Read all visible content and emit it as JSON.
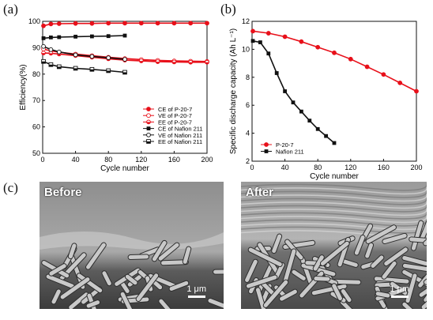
{
  "panels": {
    "a": "(a)",
    "b": "(b)",
    "c": "(c)"
  },
  "chart_data": [
    {
      "type": "line",
      "panel": "(a)",
      "xlabel": "Cycle number",
      "ylabel": "Efficiency(%)",
      "xlim": [
        0,
        200
      ],
      "ylim": [
        50,
        100
      ],
      "xticks": [
        "0",
        "40",
        "80",
        "120",
        "160",
        "200"
      ],
      "yticks": [
        "50",
        "60",
        "70",
        "80",
        "90",
        "100"
      ],
      "legend_position": "bottom-right",
      "series": [
        {
          "name": "CE of P-20-7",
          "color": "#e8101a",
          "marker": "filled-circle",
          "x": [
            1,
            10,
            20,
            40,
            60,
            80,
            100,
            120,
            140,
            160,
            180,
            200
          ],
          "y": [
            98.3,
            99.0,
            99.1,
            99.2,
            99.2,
            99.3,
            99.3,
            99.3,
            99.3,
            99.3,
            99.3,
            99.3
          ]
        },
        {
          "name": "VE of P-20-7",
          "color": "#e8101a",
          "marker": "open-circle",
          "x": [
            1,
            10,
            20,
            40,
            60,
            80,
            100,
            120,
            140,
            160,
            180,
            200
          ],
          "y": [
            89.5,
            88.8,
            88.3,
            87.6,
            87.0,
            86.4,
            85.9,
            85.5,
            85.2,
            85.0,
            84.9,
            84.8
          ]
        },
        {
          "name": "EE of P-20-7",
          "color": "#e8101a",
          "marker": "half-circle",
          "x": [
            1,
            10,
            20,
            40,
            60,
            80,
            100,
            120,
            140,
            160,
            180,
            200
          ],
          "y": [
            88.0,
            87.9,
            87.6,
            87.0,
            86.4,
            85.8,
            85.3,
            85.0,
            84.7,
            84.6,
            84.5,
            84.5
          ]
        },
        {
          "name": "CE of Nafion 211",
          "color": "#111111",
          "marker": "filled-square",
          "x": [
            1,
            10,
            20,
            40,
            60,
            80,
            100
          ],
          "y": [
            93.6,
            93.9,
            94.0,
            94.2,
            94.3,
            94.4,
            94.6
          ]
        },
        {
          "name": "VE of Nafion 211",
          "color": "#111111",
          "marker": "open-circle",
          "x": [
            1,
            10,
            20,
            40,
            60,
            80,
            100
          ],
          "y": [
            90.5,
            89.3,
            88.4,
            87.3,
            86.7,
            86.2,
            85.6
          ]
        },
        {
          "name": "EE of Nafion 211",
          "color": "#111111",
          "marker": "half-square",
          "x": [
            1,
            10,
            20,
            40,
            60,
            80,
            100
          ],
          "y": [
            84.8,
            83.6,
            82.8,
            82.2,
            81.8,
            81.3,
            80.7
          ]
        }
      ]
    },
    {
      "type": "line",
      "panel": "(b)",
      "xlabel": "Cycle number",
      "ylabel": "Specific discharge capacity (Ah L⁻¹)",
      "xlim": [
        0,
        200
      ],
      "ylim": [
        2,
        12
      ],
      "xticks": [
        "0",
        "40",
        "80",
        "120",
        "160",
        "200"
      ],
      "yticks": [
        "2",
        "4",
        "6",
        "8",
        "10",
        "12"
      ],
      "legend_position": "bottom-left",
      "series": [
        {
          "name": "P-20-7",
          "color": "#e8101a",
          "marker": "filled-circle",
          "x": [
            1,
            20,
            40,
            60,
            80,
            100,
            120,
            140,
            160,
            180,
            200
          ],
          "y": [
            11.3,
            11.15,
            10.9,
            10.55,
            10.15,
            9.75,
            9.3,
            8.75,
            8.2,
            7.6,
            7.0
          ]
        },
        {
          "name": "Nafion 211",
          "color": "#111111",
          "marker": "filled-square",
          "x": [
            1,
            10,
            20,
            30,
            40,
            50,
            60,
            70,
            80,
            90,
            100
          ],
          "y": [
            10.6,
            10.5,
            9.7,
            8.3,
            7.0,
            6.2,
            5.55,
            4.9,
            4.3,
            3.8,
            3.3
          ]
        }
      ]
    }
  ],
  "sem": {
    "before_label": "Before",
    "after_label": "After",
    "scale_before": "1 μm",
    "scale_after": "1 μm"
  }
}
